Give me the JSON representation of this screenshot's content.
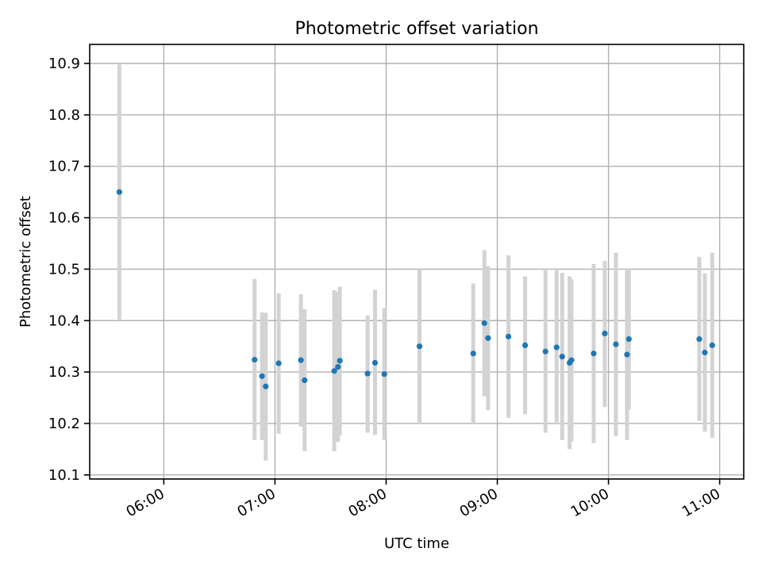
{
  "chart_data": {
    "type": "scatter",
    "title": "Photometric offset variation",
    "xlabel": "UTC time",
    "ylabel": "Photometric offset",
    "x_axis": {
      "ticks": [
        "06:00",
        "07:00",
        "08:00",
        "09:00",
        "10:00",
        "11:00"
      ],
      "range": [
        "05:20",
        "11:13"
      ]
    },
    "y_axis": {
      "ticks": [
        "10.1",
        "10.2",
        "10.3",
        "10.4",
        "10.5",
        "10.6",
        "10.7",
        "10.8",
        "10.9"
      ],
      "ylim": [
        10.092,
        10.937
      ]
    },
    "grid": true,
    "colors": {
      "point": "#1f77b4",
      "errorbar": "#d3d3d3"
    },
    "points": [
      {
        "t": "05:36",
        "y": 10.65,
        "lo": 10.402,
        "hi": 10.898
      },
      {
        "t": "06:49",
        "y": 10.324,
        "lo": 10.168,
        "hi": 10.481
      },
      {
        "t": "06:53",
        "y": 10.292,
        "lo": 10.168,
        "hi": 10.416
      },
      {
        "t": "06:55",
        "y": 10.272,
        "lo": 10.128,
        "hi": 10.415
      },
      {
        "t": "07:02",
        "y": 10.317,
        "lo": 10.18,
        "hi": 10.453
      },
      {
        "t": "07:14",
        "y": 10.323,
        "lo": 10.194,
        "hi": 10.451
      },
      {
        "t": "07:16",
        "y": 10.284,
        "lo": 10.146,
        "hi": 10.422
      },
      {
        "t": "07:32",
        "y": 10.302,
        "lo": 10.146,
        "hi": 10.459
      },
      {
        "t": "07:34",
        "y": 10.31,
        "lo": 10.164,
        "hi": 10.456
      },
      {
        "t": "07:35",
        "y": 10.322,
        "lo": 10.177,
        "hi": 10.466
      },
      {
        "t": "07:50",
        "y": 10.297,
        "lo": 10.182,
        "hi": 10.41
      },
      {
        "t": "07:54",
        "y": 10.318,
        "lo": 10.178,
        "hi": 10.46
      },
      {
        "t": "07:59",
        "y": 10.296,
        "lo": 10.168,
        "hi": 10.424
      },
      {
        "t": "08:18",
        "y": 10.35,
        "lo": 10.2,
        "hi": 10.5
      },
      {
        "t": "08:47",
        "y": 10.336,
        "lo": 10.2,
        "hi": 10.472
      },
      {
        "t": "08:53",
        "y": 10.395,
        "lo": 10.253,
        "hi": 10.537
      },
      {
        "t": "08:55",
        "y": 10.366,
        "lo": 10.226,
        "hi": 10.506
      },
      {
        "t": "09:06",
        "y": 10.369,
        "lo": 10.211,
        "hi": 10.527
      },
      {
        "t": "09:15",
        "y": 10.352,
        "lo": 10.218,
        "hi": 10.486
      },
      {
        "t": "09:26",
        "y": 10.34,
        "lo": 10.182,
        "hi": 10.498
      },
      {
        "t": "09:32",
        "y": 10.348,
        "lo": 10.198,
        "hi": 10.498
      },
      {
        "t": "09:35",
        "y": 10.33,
        "lo": 10.168,
        "hi": 10.493
      },
      {
        "t": "09:39",
        "y": 10.318,
        "lo": 10.15,
        "hi": 10.486
      },
      {
        "t": "09:40",
        "y": 10.323,
        "lo": 10.165,
        "hi": 10.48
      },
      {
        "t": "09:52",
        "y": 10.336,
        "lo": 10.162,
        "hi": 10.51
      },
      {
        "t": "09:58",
        "y": 10.375,
        "lo": 10.232,
        "hi": 10.516
      },
      {
        "t": "10:04",
        "y": 10.354,
        "lo": 10.175,
        "hi": 10.532
      },
      {
        "t": "10:10",
        "y": 10.334,
        "lo": 10.168,
        "hi": 10.5
      },
      {
        "t": "10:11",
        "y": 10.364,
        "lo": 10.227,
        "hi": 10.502
      },
      {
        "t": "10:49",
        "y": 10.364,
        "lo": 10.205,
        "hi": 10.524
      },
      {
        "t": "10:52",
        "y": 10.338,
        "lo": 10.184,
        "hi": 10.492
      },
      {
        "t": "10:56",
        "y": 10.352,
        "lo": 10.172,
        "hi": 10.532
      }
    ]
  }
}
